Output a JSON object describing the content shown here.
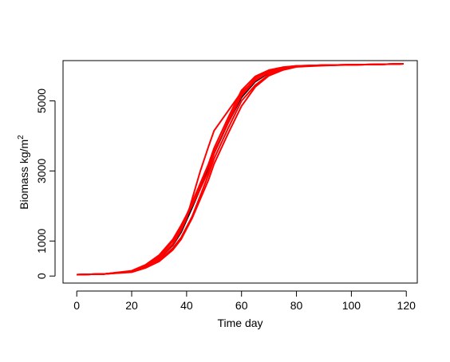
{
  "chart_data": {
    "type": "line",
    "title": "",
    "xlabel": "Time day",
    "ylabel_base": "Biomass kg/m",
    "ylabel_sup": "2",
    "xlim": [
      -5,
      124
    ],
    "ylim": [
      -200,
      6150
    ],
    "x_ticks": [
      0,
      20,
      40,
      60,
      80,
      100,
      120
    ],
    "y_ticks": [
      0,
      1000,
      3000,
      5000
    ],
    "y_tick_labels": [
      "0",
      "1000",
      "3000",
      "5000"
    ],
    "grid": false,
    "legend": "none",
    "colors": {
      "simulations": "#ff0000",
      "mean": "#000000"
    },
    "series": [
      {
        "x": [
          0,
          10,
          20,
          25,
          30,
          35,
          38,
          40,
          42,
          45,
          48,
          50,
          55,
          60,
          65,
          70,
          75,
          80,
          90,
          100,
          110,
          119
        ],
        "y": [
          40,
          60,
          140,
          300,
          560,
          1000,
          1400,
          1700,
          2000,
          2500,
          3000,
          3500,
          4400,
          5200,
          5650,
          5860,
          5950,
          6000,
          6020,
          6030,
          6040,
          6060
        ]
      },
      {
        "x": [
          0,
          10,
          20,
          25,
          30,
          35,
          38,
          40,
          42,
          45,
          48,
          50,
          55,
          60,
          65,
          70,
          75,
          80,
          90,
          100,
          110,
          119
        ],
        "y": [
          40,
          60,
          130,
          280,
          500,
          900,
          1300,
          1650,
          2200,
          3000,
          3700,
          4150,
          4700,
          5250,
          5600,
          5800,
          5920,
          5990,
          6020,
          6030,
          6040,
          6060
        ]
      },
      {
        "x": [
          0,
          10,
          20,
          25,
          30,
          35,
          38,
          40,
          42,
          45,
          48,
          50,
          55,
          60,
          65,
          70,
          75,
          80,
          90,
          100,
          110,
          119
        ],
        "y": [
          40,
          60,
          120,
          250,
          450,
          800,
          1100,
          1400,
          1700,
          2300,
          2900,
          3350,
          4200,
          5000,
          5450,
          5750,
          5900,
          5980,
          6020,
          6030,
          6040,
          6060
        ]
      },
      {
        "x": [
          0,
          10,
          20,
          25,
          30,
          35,
          38,
          40,
          42,
          45,
          48,
          50,
          55,
          60,
          65,
          70,
          75,
          80,
          90,
          100,
          110,
          119
        ],
        "y": [
          40,
          60,
          150,
          320,
          600,
          1050,
          1450,
          1750,
          2100,
          2650,
          3200,
          3650,
          4500,
          5300,
          5700,
          5880,
          5960,
          6000,
          6020,
          6030,
          6040,
          6060
        ]
      },
      {
        "x": [
          0,
          10,
          20,
          25,
          30,
          35,
          38,
          40,
          42,
          45,
          48,
          50,
          55,
          60,
          65,
          70,
          75,
          80,
          90,
          100,
          110,
          119
        ],
        "y": [
          40,
          60,
          110,
          230,
          420,
          750,
          1050,
          1350,
          1650,
          2200,
          2750,
          3200,
          4050,
          4850,
          5400,
          5720,
          5880,
          5970,
          6010,
          6030,
          6040,
          6060
        ]
      },
      {
        "x": [
          0,
          10,
          20,
          25,
          30,
          35,
          38,
          40,
          42,
          45,
          48,
          50,
          55,
          60,
          65,
          70,
          75,
          80,
          90,
          100,
          110,
          119
        ],
        "y": [
          40,
          60,
          135,
          290,
          520,
          920,
          1350,
          1700,
          2050,
          2600,
          3150,
          3550,
          4350,
          5150,
          5580,
          5820,
          5930,
          5990,
          6020,
          6030,
          6040,
          6060
        ]
      }
    ],
    "mean_series": {
      "x": [
        0,
        10,
        20,
        25,
        30,
        35,
        38,
        40,
        42,
        45,
        48,
        50,
        55,
        60,
        65,
        70,
        75,
        80,
        90,
        100,
        110,
        119
      ],
      "y": [
        40,
        60,
        130,
        270,
        500,
        880,
        1250,
        1600,
        1950,
        2500,
        3050,
        3500,
        4350,
        5100,
        5550,
        5800,
        5920,
        5990,
        6020,
        6030,
        6040,
        6060
      ]
    }
  }
}
